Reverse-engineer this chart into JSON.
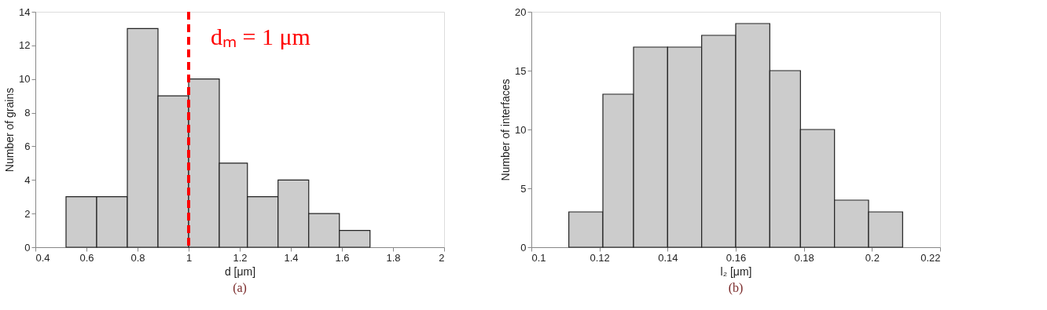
{
  "chart_data": [
    {
      "type": "histogram",
      "xlabel": "d [μm]",
      "ylabel": "Number of grains",
      "color": "#cccccc",
      "bins": [
        0.52,
        0.64,
        0.76,
        0.88,
        1.0,
        1.12,
        1.23,
        1.35,
        1.47,
        1.59,
        1.71
      ],
      "values": [
        3,
        3,
        13,
        9,
        10,
        5,
        3,
        4,
        2,
        1
      ],
      "xlim": [
        0.4,
        2
      ],
      "xticks": [
        0.4,
        0.6,
        0.8,
        1,
        1.2,
        1.4,
        1.6,
        1.8,
        2
      ],
      "ylim": [
        0,
        14
      ],
      "yticks": [
        0,
        2,
        4,
        6,
        8,
        10,
        12,
        14
      ],
      "grid": false,
      "ref_lines": [
        {
          "axis": "x",
          "value": 1,
          "label": "dₘ = 1 μm",
          "color": "#ff0000",
          "line_style": "dashed"
        }
      ],
      "annotations": [
        "(a)"
      ]
    },
    {
      "type": "histogram",
      "xlabel": "l₂ [μm]",
      "ylabel": "Number of interfaces",
      "color": "#cccccc",
      "bins": [
        0.111,
        0.121,
        0.13,
        0.14,
        0.15,
        0.16,
        0.17,
        0.179,
        0.189,
        0.199,
        0.209
      ],
      "values": [
        3,
        13,
        17,
        17,
        18,
        19,
        15,
        10,
        4,
        3
      ],
      "xlim": [
        0.1,
        0.22
      ],
      "xticks": [
        0.1,
        0.12,
        0.14,
        0.16,
        0.18,
        0.2,
        0.22
      ],
      "ylim": [
        0,
        20
      ],
      "yticks": [
        0,
        5,
        10,
        15,
        20
      ],
      "grid": false,
      "annotations": [
        "(b)"
      ]
    }
  ]
}
